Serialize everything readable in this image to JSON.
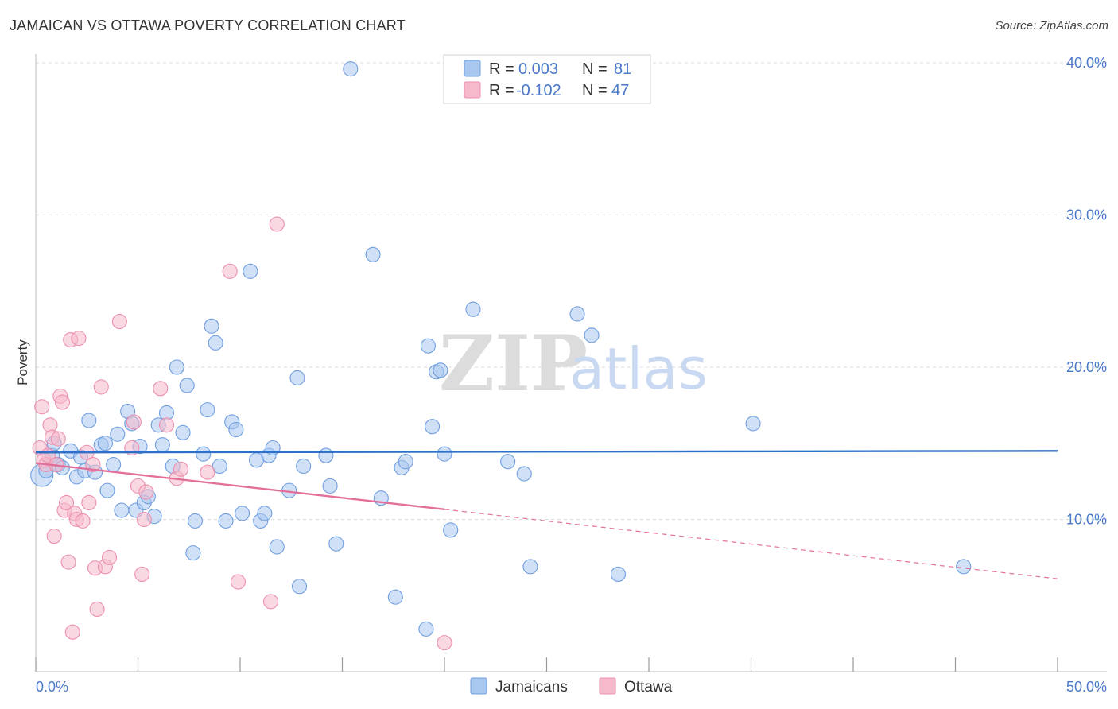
{
  "header": {
    "title": "JAMAICAN VS OTTAWA POVERTY CORRELATION CHART",
    "source": "Source: ZipAtlas.com"
  },
  "watermark": {
    "zip": "ZIP",
    "atlas": "atlas"
  },
  "colors": {
    "jamaicans_fill": "#a9c8f0",
    "jamaicans_stroke": "#6f9ee0",
    "jamaicans_line": "#2e6fc9",
    "ottawa_fill": "#f6b8cb",
    "ottawa_stroke": "#ec8fae",
    "ottawa_line": "#e3709a",
    "tick_text": "#4a78c9",
    "grid": "#dddddd"
  },
  "chart_data": {
    "type": "scatter",
    "title": "JAMAICAN VS OTTAWA POVERTY CORRELATION CHART",
    "xlabel": "",
    "ylabel": "Poverty",
    "xlim": [
      0,
      50
    ],
    "ylim": [
      0,
      40
    ],
    "x_tick_labels": [
      "0.0%",
      "50.0%"
    ],
    "y_ticks": [
      10,
      20,
      30,
      40
    ],
    "y_tick_labels": [
      "10.0%",
      "20.0%",
      "30.0%",
      "40.0%"
    ],
    "grid": "horizontal dashed",
    "legend": {
      "placement": "top-center",
      "entries": [
        {
          "r_label": "R =",
          "r_value": "0.003",
          "n_label": "N =",
          "n_value": "81"
        },
        {
          "r_label": "R =",
          "r_value": "-0.102",
          "n_label": "N =",
          "n_value": "47"
        }
      ]
    },
    "bottom_legend": [
      "Jamaicans",
      "Ottawa"
    ],
    "series": [
      {
        "name": "Jamaicans",
        "trend": {
          "x": [
            0,
            50
          ],
          "y": [
            14.4,
            14.5
          ],
          "dashed_from": null
        },
        "points": [
          [
            0.3,
            12.9,
            14
          ],
          [
            0.5,
            13.2,
            9
          ],
          [
            0.8,
            14.2,
            9
          ],
          [
            0.9,
            15.0,
            9
          ],
          [
            1.1,
            13.6,
            9
          ],
          [
            1.3,
            13.4,
            9
          ],
          [
            1.7,
            14.5,
            9
          ],
          [
            2.0,
            12.8,
            9
          ],
          [
            2.2,
            14.1,
            9
          ],
          [
            2.4,
            13.2,
            9
          ],
          [
            2.6,
            16.5,
            9
          ],
          [
            2.9,
            13.1,
            9
          ],
          [
            3.2,
            14.9,
            9
          ],
          [
            3.4,
            15.0,
            9
          ],
          [
            3.5,
            11.9,
            9
          ],
          [
            3.8,
            13.6,
            9
          ],
          [
            4.0,
            15.6,
            9
          ],
          [
            4.2,
            10.6,
            9
          ],
          [
            4.5,
            17.1,
            9
          ],
          [
            4.7,
            16.3,
            9
          ],
          [
            4.9,
            10.6,
            9
          ],
          [
            5.1,
            14.8,
            9
          ],
          [
            5.3,
            11.1,
            9
          ],
          [
            5.5,
            11.5,
            9
          ],
          [
            5.8,
            10.2,
            9
          ],
          [
            6.0,
            16.2,
            9
          ],
          [
            6.2,
            14.9,
            9
          ],
          [
            6.4,
            17.0,
            9
          ],
          [
            6.7,
            13.5,
            9
          ],
          [
            6.9,
            20.0,
            9
          ],
          [
            7.2,
            15.7,
            9
          ],
          [
            7.4,
            18.8,
            9
          ],
          [
            7.7,
            7.8,
            9
          ],
          [
            7.8,
            9.9,
            9
          ],
          [
            8.2,
            14.3,
            9
          ],
          [
            8.4,
            17.2,
            9
          ],
          [
            8.6,
            22.7,
            9
          ],
          [
            8.8,
            21.6,
            9
          ],
          [
            9.0,
            13.5,
            9
          ],
          [
            9.3,
            9.9,
            9
          ],
          [
            9.6,
            16.4,
            9
          ],
          [
            9.8,
            15.9,
            9
          ],
          [
            10.1,
            10.4,
            9
          ],
          [
            10.5,
            26.3,
            9
          ],
          [
            10.8,
            13.9,
            9
          ],
          [
            11.0,
            9.9,
            9
          ],
          [
            11.2,
            10.4,
            9
          ],
          [
            11.4,
            14.2,
            9
          ],
          [
            11.6,
            14.7,
            9
          ],
          [
            11.8,
            8.2,
            9
          ],
          [
            12.4,
            11.9,
            9
          ],
          [
            12.8,
            19.3,
            9
          ],
          [
            12.9,
            5.6,
            9
          ],
          [
            13.1,
            13.5,
            9
          ],
          [
            14.2,
            14.2,
            9
          ],
          [
            14.4,
            12.2,
            9
          ],
          [
            14.7,
            8.4,
            9
          ],
          [
            15.4,
            39.6,
            9
          ],
          [
            16.5,
            27.4,
            9
          ],
          [
            16.9,
            11.4,
            9
          ],
          [
            17.6,
            4.9,
            9
          ],
          [
            17.9,
            13.4,
            9
          ],
          [
            18.1,
            13.8,
            9
          ],
          [
            19.1,
            2.8,
            9
          ],
          [
            19.2,
            21.4,
            9
          ],
          [
            19.4,
            16.1,
            9
          ],
          [
            19.6,
            19.7,
            9
          ],
          [
            19.8,
            19.8,
            9
          ],
          [
            20.0,
            14.3,
            9
          ],
          [
            20.3,
            9.3,
            9
          ],
          [
            21.4,
            23.8,
            9
          ],
          [
            23.1,
            13.8,
            9
          ],
          [
            23.9,
            13.0,
            9
          ],
          [
            24.2,
            6.9,
            9
          ],
          [
            26.5,
            23.5,
            9
          ],
          [
            27.2,
            22.1,
            9
          ],
          [
            28.5,
            6.4,
            9
          ],
          [
            35.1,
            16.3,
            9
          ],
          [
            45.4,
            6.9,
            9
          ]
        ]
      },
      {
        "name": "Ottawa",
        "trend": {
          "x": [
            0,
            50
          ],
          "y": [
            13.7,
            6.1
          ],
          "dashed_from": 20
        },
        "points": [
          [
            0.2,
            14.7,
            9
          ],
          [
            0.3,
            17.4,
            9
          ],
          [
            0.4,
            13.9,
            9
          ],
          [
            0.5,
            13.6,
            9
          ],
          [
            0.6,
            14.2,
            9
          ],
          [
            0.7,
            16.2,
            9
          ],
          [
            0.8,
            15.4,
            9
          ],
          [
            0.9,
            8.9,
            9
          ],
          [
            1.0,
            13.6,
            9
          ],
          [
            1.1,
            15.3,
            9
          ],
          [
            1.2,
            18.1,
            9
          ],
          [
            1.3,
            17.7,
            9
          ],
          [
            1.4,
            10.6,
            9
          ],
          [
            1.5,
            11.1,
            9
          ],
          [
            1.6,
            7.2,
            9
          ],
          [
            1.7,
            21.8,
            9
          ],
          [
            1.8,
            2.6,
            9
          ],
          [
            1.9,
            10.4,
            9
          ],
          [
            2.0,
            10.0,
            9
          ],
          [
            2.1,
            21.9,
            9
          ],
          [
            2.3,
            9.9,
            9
          ],
          [
            2.5,
            14.4,
            9
          ],
          [
            2.6,
            11.1,
            9
          ],
          [
            2.8,
            13.6,
            9
          ],
          [
            2.9,
            6.8,
            9
          ],
          [
            3.0,
            4.1,
            9
          ],
          [
            3.2,
            18.7,
            9
          ],
          [
            3.4,
            6.9,
            9
          ],
          [
            3.6,
            7.5,
            9
          ],
          [
            4.1,
            23.0,
            9
          ],
          [
            4.7,
            14.7,
            9
          ],
          [
            4.8,
            16.4,
            9
          ],
          [
            5.0,
            12.2,
            9
          ],
          [
            5.2,
            6.4,
            9
          ],
          [
            5.3,
            10.0,
            9
          ],
          [
            5.4,
            11.8,
            9
          ],
          [
            6.1,
            18.6,
            9
          ],
          [
            6.4,
            16.2,
            9
          ],
          [
            6.9,
            12.7,
            9
          ],
          [
            7.1,
            13.3,
            9
          ],
          [
            8.4,
            13.1,
            9
          ],
          [
            9.5,
            26.3,
            9
          ],
          [
            9.9,
            5.9,
            9
          ],
          [
            11.5,
            4.6,
            9
          ],
          [
            11.8,
            29.4,
            9
          ],
          [
            20.0,
            1.9,
            9
          ]
        ]
      }
    ]
  }
}
